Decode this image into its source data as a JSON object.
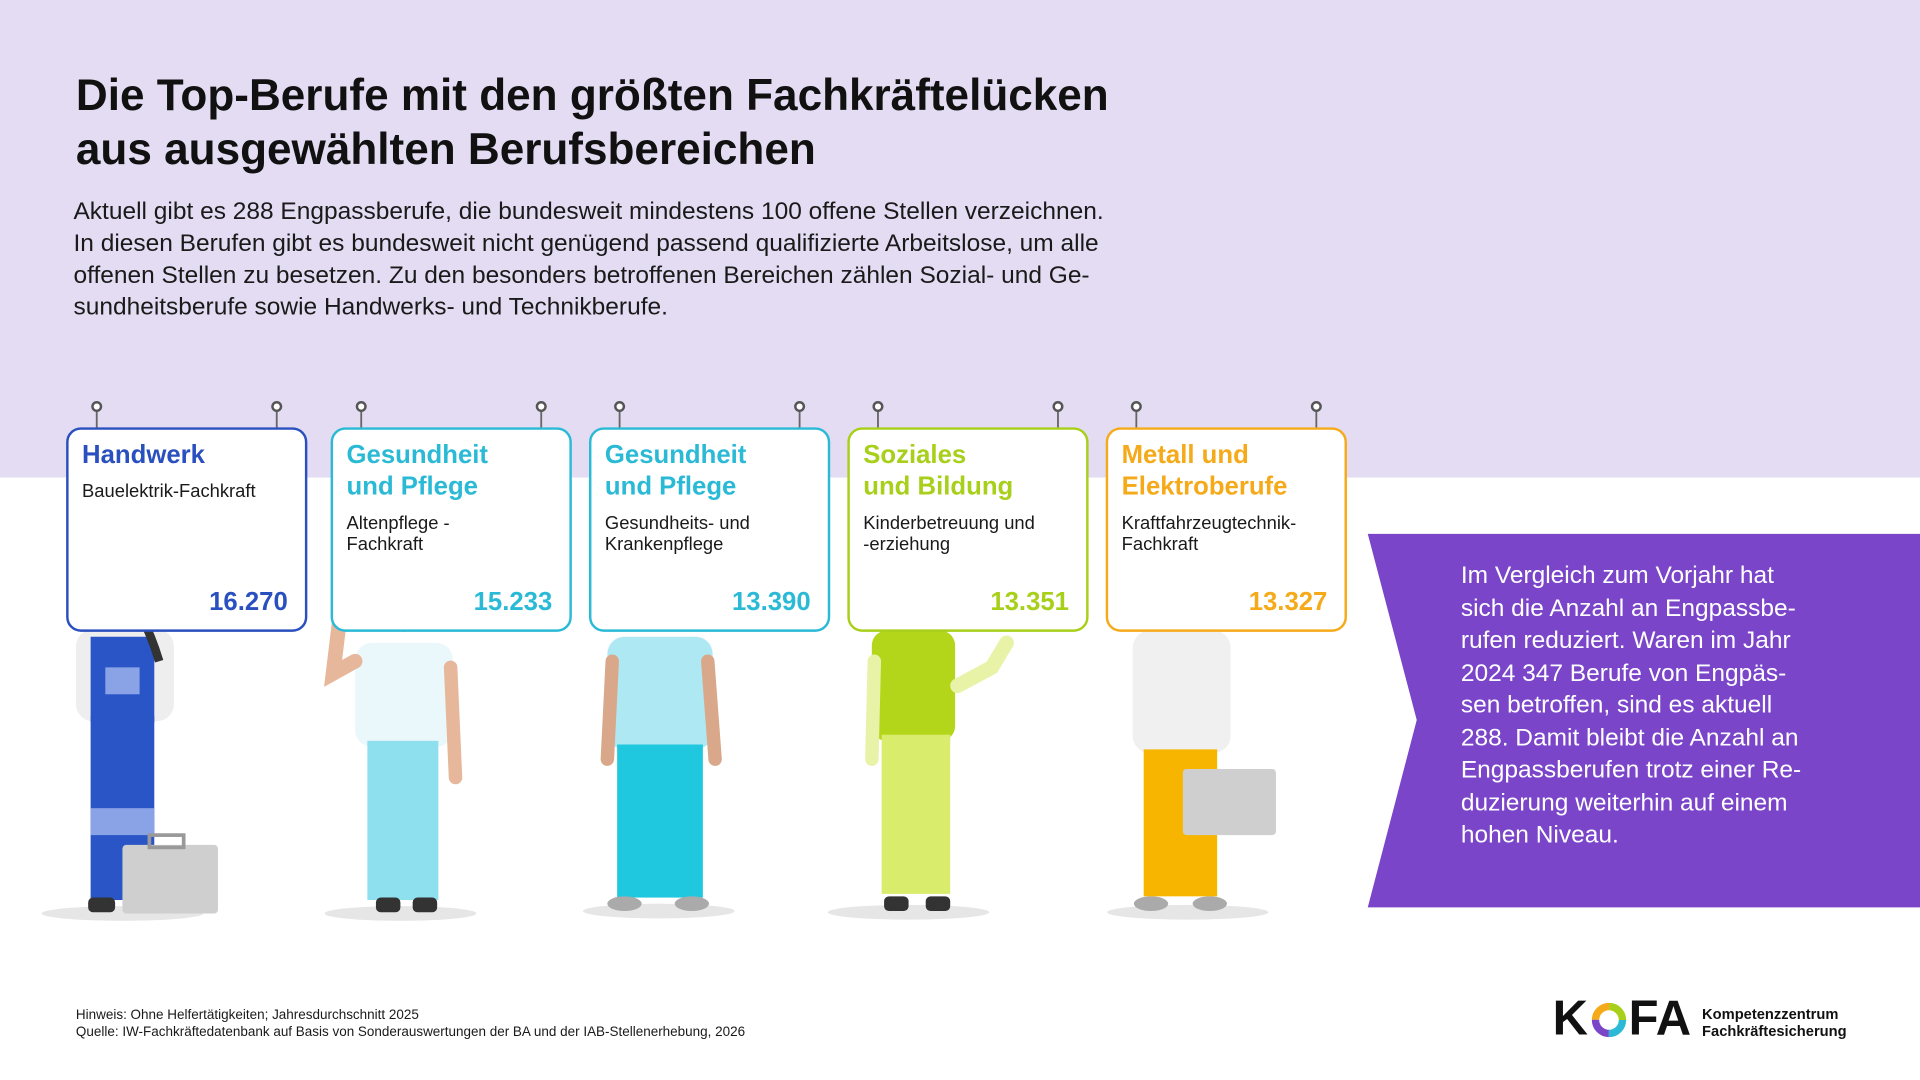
{
  "header": {
    "title": [
      "Die Top-Berufe mit den größten Fachkräftelücken",
      "aus ausgewählten Berufsbereichen"
    ],
    "intro": [
      "Aktuell gibt es 288 Engpassberufe, die bundesweit mindestens 100 offene Stellen verzeichnen.",
      "In diesen Berufen gibt es bundesweit nicht genügend passend qualifizierte Arbeitslose, um alle",
      "offenen Stellen zu besetzen. Zu den besonders betroffenen Bereichen zählen Sozial- und Ge-",
      "sundheitsberufe sowie Handwerks- und Technikberufe."
    ]
  },
  "cards": [
    {
      "category": [
        "Handwerk"
      ],
      "job": [
        "Bauelektrik-Fachkraft"
      ],
      "value": "16.270",
      "color": "#2a4fbf"
    },
    {
      "category": [
        "Gesundheit",
        "und Pflege"
      ],
      "job": [
        "Altenpflege -",
        "Fachkraft"
      ],
      "value": "15.233",
      "color": "#2bbad6"
    },
    {
      "category": [
        "Gesundheit",
        "und Pflege"
      ],
      "job": [
        "Gesundheits- und",
        "Krankenpflege"
      ],
      "value": "13.390",
      "color": "#2bbad6"
    },
    {
      "category": [
        "Soziales",
        "und Bildung"
      ],
      "job": [
        "Kinderbetreuung und",
        "-erziehung"
      ],
      "value": "13.351",
      "color": "#a8cf1a"
    },
    {
      "category": [
        "Metall und",
        "Elektroberufe"
      ],
      "job": [
        "Kraftfahrzeugtechnik-",
        "Fachkraft"
      ],
      "value": "13.327",
      "color": "#f5aa1a"
    }
  ],
  "panel": {
    "lines": [
      "Im Vergleich zum Vorjahr hat",
      "sich die Anzahl an Engpassbe-",
      "rufen reduziert. Waren im Jahr",
      "2024 347 Berufe von Engpäs-",
      "sen betroffen, sind es aktuell",
      "288. Damit bleibt die Anzahl an",
      "Engpassberufen trotz einer Re-",
      "duzierung weiterhin auf einem",
      "hohen Niveau."
    ]
  },
  "footer": {
    "notes": [
      "Hinweis: Ohne Helfertätigkeiten; Jahresdurchschnitt 2025",
      "Quelle: IW-Fachkräftedatenbank auf Basis von Sonderauswertungen der BA und der IAB-Stellenerhebung, 2026"
    ]
  },
  "logo": {
    "left": "K",
    "right": "FA",
    "subtitle": [
      "Kompetenzzentrum",
      "Fachkräftesicherung"
    ]
  }
}
